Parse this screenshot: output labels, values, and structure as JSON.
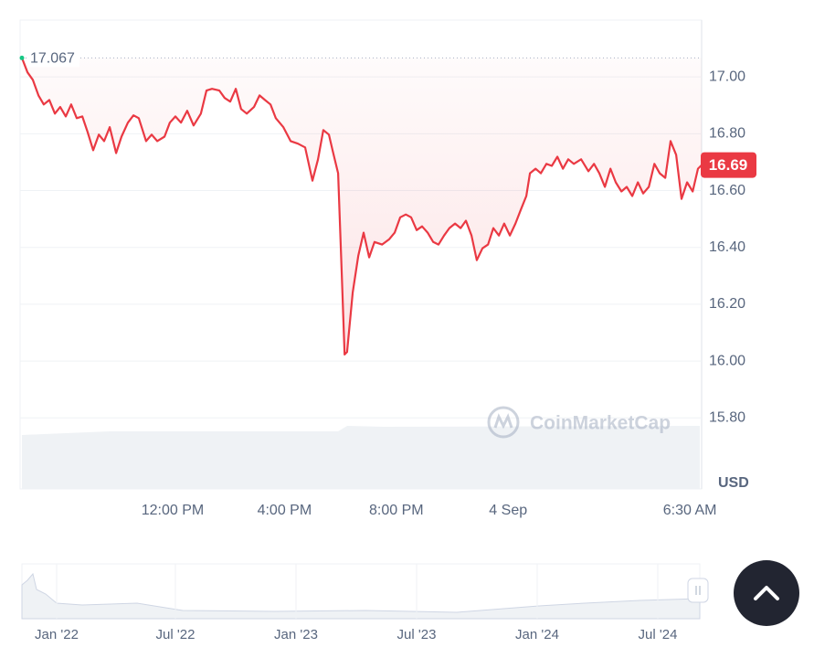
{
  "chart_data": {
    "type": "line",
    "x": [
      6.61,
      6.81,
      7.0,
      7.2,
      7.39,
      7.59,
      7.79,
      7.98,
      8.18,
      8.37,
      8.57,
      8.77,
      8.96,
      9.16,
      9.36,
      9.55,
      9.75,
      9.98,
      10.17,
      10.4,
      10.6,
      10.79,
      11.05,
      11.25,
      11.45,
      11.71,
      11.9,
      12.1,
      12.3,
      12.52,
      12.75,
      13.01,
      13.21,
      13.41,
      13.67,
      13.86,
      14.06,
      14.26,
      14.45,
      14.65,
      14.91,
      15.11,
      15.3,
      15.5,
      15.69,
      15.96,
      16.22,
      16.48,
      16.74,
      17.0,
      17.2,
      17.39,
      17.59,
      17.72,
      17.92,
      18.05,
      18.15,
      18.24,
      18.44,
      18.64,
      18.83,
      19.03,
      19.22,
      19.49,
      19.75,
      19.94,
      20.14,
      20.34,
      20.53,
      20.73,
      20.92,
      21.12,
      21.32,
      21.51,
      21.71,
      21.9,
      22.1,
      22.3,
      22.49,
      22.69,
      22.88,
      23.08,
      23.28,
      23.47,
      23.67,
      23.86,
      24.06,
      24.26,
      24.45,
      24.65,
      24.78,
      24.98,
      25.17,
      25.37,
      25.56,
      25.76,
      25.96,
      26.15,
      26.35,
      26.61,
      26.87,
      27.07,
      27.26,
      27.46,
      27.66,
      27.85,
      28.05,
      28.24,
      28.44,
      28.64,
      28.83,
      29.03,
      29.23,
      29.42,
      29.62,
      29.81,
      30.01,
      30.2,
      30.4,
      30.6,
      30.79,
      30.92
    ],
    "values": [
      17.067,
      17.016,
      16.99,
      16.935,
      16.903,
      16.919,
      16.871,
      16.894,
      16.861,
      16.903,
      16.855,
      16.861,
      16.806,
      16.742,
      16.797,
      16.774,
      16.823,
      16.732,
      16.79,
      16.839,
      16.865,
      16.855,
      16.774,
      16.797,
      16.774,
      16.79,
      16.839,
      16.861,
      16.839,
      16.881,
      16.829,
      16.871,
      16.952,
      16.958,
      16.952,
      16.926,
      16.913,
      16.958,
      16.887,
      16.871,
      16.894,
      16.935,
      16.919,
      16.903,
      16.855,
      16.823,
      16.774,
      16.765,
      16.752,
      16.635,
      16.71,
      16.813,
      16.797,
      16.742,
      16.661,
      16.306,
      16.023,
      16.032,
      16.242,
      16.371,
      16.452,
      16.365,
      16.419,
      16.41,
      16.429,
      16.452,
      16.506,
      16.516,
      16.506,
      16.461,
      16.474,
      16.452,
      16.419,
      16.41,
      16.442,
      16.468,
      16.484,
      16.468,
      16.494,
      16.442,
      16.355,
      16.397,
      16.41,
      16.468,
      16.442,
      16.484,
      16.442,
      16.484,
      16.532,
      16.581,
      16.661,
      16.677,
      16.661,
      16.694,
      16.687,
      16.719,
      16.677,
      16.71,
      16.694,
      16.71,
      16.668,
      16.694,
      16.661,
      16.613,
      16.677,
      16.629,
      16.597,
      16.613,
      16.581,
      16.629,
      16.59,
      16.613,
      16.694,
      16.661,
      16.645,
      16.774,
      16.726,
      16.571,
      16.629,
      16.597,
      16.677,
      16.69
    ],
    "color": "#ea3943",
    "xlim": [
      6.61,
      30.92
    ],
    "xticks": [
      {
        "value": 12,
        "label": "12:00 PM"
      },
      {
        "value": 16,
        "label": "4:00 PM"
      },
      {
        "value": 20,
        "label": "8:00 PM"
      },
      {
        "value": 24,
        "label": "4 Sep"
      },
      {
        "value": 30.5,
        "label": "6:30 AM"
      }
    ],
    "ylim": [
      15.55,
      17.2
    ],
    "yticks": [
      {
        "value": 15.8,
        "label": "15.80"
      },
      {
        "value": 16,
        "label": "16.00"
      },
      {
        "value": 16.2,
        "label": "16.20"
      },
      {
        "value": 16.4,
        "label": "16.40"
      },
      {
        "value": 16.6,
        "label": "16.60"
      },
      {
        "value": 16.8,
        "label": "16.80"
      },
      {
        "value": 17,
        "label": "17.00"
      }
    ],
    "grid": true,
    "y_axis_label": "USD",
    "open_price": 17.067,
    "last_price": 16.69,
    "watermark": "CoinMarketCap",
    "navigator_labels": [
      "Jan '22",
      "Jul '22",
      "Jan '23",
      "Jul '23",
      "Jan '24",
      "Jul '24"
    ]
  }
}
